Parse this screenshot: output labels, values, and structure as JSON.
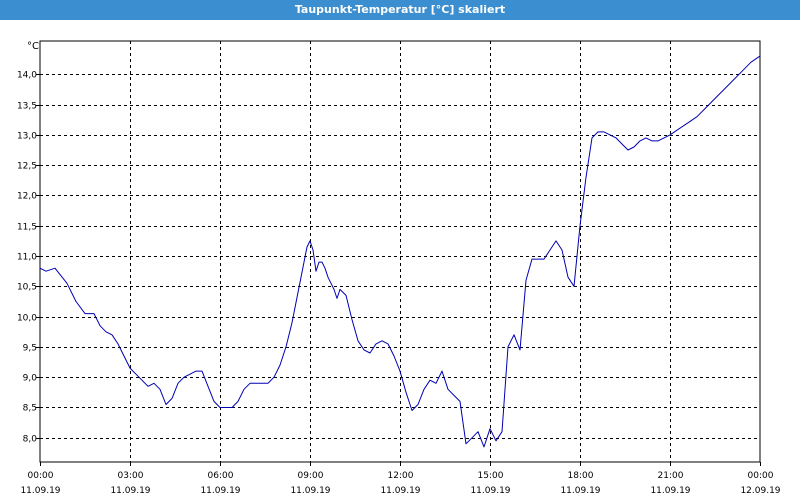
{
  "window": {
    "title": "Taupunkt-Temperatur [°C] skaliert"
  },
  "chart_data": {
    "type": "line",
    "title": "Taupunkt-Temperatur [°C] skaliert",
    "y_unit_label": "°C",
    "ylim": [
      7.6,
      14.55
    ],
    "y_ticks": [
      8.0,
      8.5,
      9.0,
      9.5,
      10.0,
      10.5,
      11.0,
      11.5,
      12.0,
      12.5,
      13.0,
      13.5,
      14.0
    ],
    "y_tick_labels": [
      "8,0",
      "8,5",
      "9,0",
      "9,5",
      "10,0",
      "10,5",
      "11,0",
      "11,5",
      "12,0",
      "12,5",
      "13,0",
      "13,5",
      "14,0"
    ],
    "xlim_hours": [
      0,
      24
    ],
    "x_ticks": [
      {
        "hour": 0,
        "time": "00:00",
        "date": "11.09.19"
      },
      {
        "hour": 3,
        "time": "03:00",
        "date": "11.09.19"
      },
      {
        "hour": 6,
        "time": "06:00",
        "date": "11.09.19"
      },
      {
        "hour": 9,
        "time": "09:00",
        "date": "11.09.19"
      },
      {
        "hour": 12,
        "time": "12:00",
        "date": "11.09.19"
      },
      {
        "hour": 15,
        "time": "15:00",
        "date": "11.09.19"
      },
      {
        "hour": 18,
        "time": "18:00",
        "date": "11.09.19"
      },
      {
        "hour": 21,
        "time": "21:00",
        "date": "11.09.19"
      },
      {
        "hour": 24,
        "time": "00:00",
        "date": "12.09.19"
      }
    ],
    "grid": true,
    "series_color": "#0000b4",
    "series": [
      {
        "x": [
          0,
          0.2,
          0.5,
          0.9,
          1.2,
          1.5,
          1.8,
          2.0,
          2.2,
          2.4,
          2.6,
          2.8,
          3.0,
          3.2,
          3.4,
          3.6,
          3.8,
          4.0,
          4.2,
          4.4,
          4.6,
          4.8,
          5.0,
          5.2,
          5.4,
          5.6,
          5.8,
          6.0,
          6.2,
          6.4,
          6.6,
          6.8,
          7.0,
          7.2,
          7.4,
          7.6,
          7.8,
          8.0,
          8.2,
          8.4,
          8.6,
          8.8,
          8.9,
          9.0,
          9.1,
          9.2,
          9.3,
          9.4,
          9.5,
          9.6,
          9.7,
          9.8,
          9.9,
          10.0,
          10.2,
          10.4,
          10.6,
          10.8,
          11.0,
          11.2,
          11.4,
          11.6,
          11.8,
          12.0,
          12.2,
          12.4,
          12.6,
          12.8,
          13.0,
          13.2,
          13.4,
          13.6,
          13.8,
          14.0,
          14.2,
          14.4,
          14.6,
          14.8,
          15.0,
          15.2,
          15.4,
          15.6,
          15.8,
          16.0,
          16.2,
          16.4,
          16.6,
          16.8,
          17.0,
          17.2,
          17.4,
          17.6,
          17.8,
          18.0,
          18.2,
          18.4,
          18.6,
          18.8,
          19.0,
          19.2,
          19.4,
          19.6,
          19.8,
          20.0,
          20.2,
          20.4,
          20.6,
          20.8,
          21.0,
          21.3,
          21.6,
          21.9,
          22.2,
          22.5,
          22.8,
          23.1,
          23.4,
          23.7,
          24.0
        ],
        "y": [
          10.8,
          10.75,
          10.8,
          10.55,
          10.25,
          10.05,
          10.05,
          9.85,
          9.75,
          9.7,
          9.55,
          9.35,
          9.15,
          9.05,
          8.95,
          8.85,
          8.9,
          8.8,
          8.55,
          8.65,
          8.9,
          9.0,
          9.05,
          9.1,
          9.1,
          8.85,
          8.6,
          8.5,
          8.5,
          8.5,
          8.6,
          8.8,
          8.9,
          8.9,
          8.9,
          8.9,
          9.0,
          9.2,
          9.5,
          9.9,
          10.4,
          10.9,
          11.15,
          11.25,
          11.1,
          10.75,
          10.9,
          10.9,
          10.8,
          10.65,
          10.55,
          10.45,
          10.3,
          10.45,
          10.35,
          9.95,
          9.6,
          9.45,
          9.4,
          9.55,
          9.6,
          9.55,
          9.35,
          9.1,
          8.75,
          8.45,
          8.55,
          8.8,
          8.95,
          8.9,
          9.1,
          8.8,
          8.7,
          8.6,
          7.9,
          8.0,
          8.1,
          7.85,
          8.15,
          7.95,
          8.1,
          9.5,
          9.7,
          9.45,
          10.6,
          10.95,
          10.95,
          10.95,
          11.1,
          11.25,
          11.1,
          10.65,
          10.5,
          11.5,
          12.3,
          12.95,
          13.05,
          13.05,
          13.0,
          12.95,
          12.85,
          12.75,
          12.8,
          12.9,
          12.95,
          12.9,
          12.9,
          12.95,
          13.0,
          13.1,
          13.2,
          13.3,
          13.45,
          13.6,
          13.75,
          13.9,
          14.05,
          14.2,
          14.3
        ]
      }
    ]
  }
}
